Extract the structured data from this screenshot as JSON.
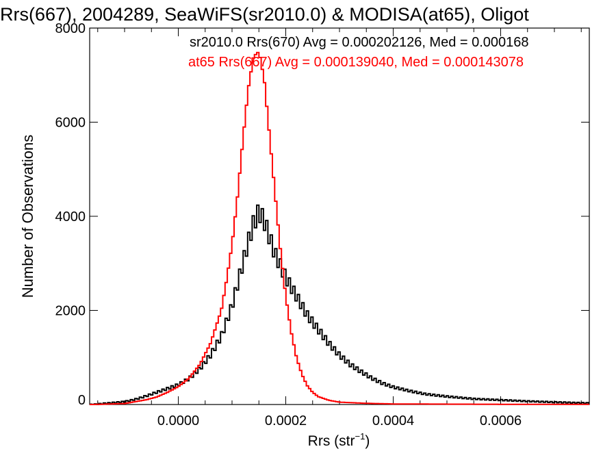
{
  "chart_data": {
    "type": "histogram",
    "title": "Rrs(667), 2004289, SeaWiFS(sr2010.0) & MODISA(at65), Oligot",
    "xlabel": "Rrs (str",
    "xlabel_sup": "−1",
    "xlabel_end": ")",
    "ylabel": "Number of Observations",
    "xlim": [
      -0.000165,
      0.000765
    ],
    "ylim": [
      0,
      8000
    ],
    "x_ticks": [
      0.0,
      0.0002,
      0.0004,
      0.0006
    ],
    "x_tick_labels": [
      "0.0000",
      "0.0002",
      "0.0004",
      "0.0006"
    ],
    "y_ticks": [
      0,
      2000,
      4000,
      6000,
      8000
    ],
    "y_tick_labels": [
      "0",
      "2000",
      "4000",
      "6000",
      "8000"
    ],
    "grid": false,
    "legend": "top",
    "series": [
      {
        "name": "sr2010.0 Rrs(670) Avg = 0.000202126, Med = 0.000168",
        "color": "#000000",
        "style": "noisy-step",
        "points": [
          [
            -0.00016,
            0
          ],
          [
            -0.00014,
            20
          ],
          [
            -0.00012,
            40
          ],
          [
            -0.0001,
            60
          ],
          [
            -8e-05,
            110
          ],
          [
            -6e-05,
            180
          ],
          [
            -4e-05,
            260
          ],
          [
            -2e-05,
            340
          ],
          [
            0.0,
            420
          ],
          [
            2e-05,
            550
          ],
          [
            4e-05,
            760
          ],
          [
            6e-05,
            1050
          ],
          [
            8e-05,
            1450
          ],
          [
            0.0001,
            2100
          ],
          [
            0.00011,
            2550
          ],
          [
            0.00012,
            3000
          ],
          [
            0.00013,
            3450
          ],
          [
            0.00014,
            3850
          ],
          [
            0.00015,
            4100
          ],
          [
            0.00016,
            3900
          ],
          [
            0.00017,
            3550
          ],
          [
            0.00018,
            3200
          ],
          [
            0.00019,
            2950
          ],
          [
            0.0002,
            2700
          ],
          [
            0.00022,
            2300
          ],
          [
            0.00024,
            1900
          ],
          [
            0.00026,
            1600
          ],
          [
            0.00028,
            1300
          ],
          [
            0.0003,
            1050
          ],
          [
            0.00032,
            850
          ],
          [
            0.00034,
            700
          ],
          [
            0.00036,
            560
          ],
          [
            0.00038,
            450
          ],
          [
            0.0004,
            370
          ],
          [
            0.00043,
            290
          ],
          [
            0.00046,
            220
          ],
          [
            0.0005,
            170
          ],
          [
            0.00055,
            120
          ],
          [
            0.0006,
            95
          ],
          [
            0.00065,
            70
          ],
          [
            0.0007,
            50
          ],
          [
            0.00076,
            30
          ]
        ]
      },
      {
        "name": "at65 Rrs(667) Avg = 0.000139040, Med = 0.000143078",
        "color": "#ff0000",
        "style": "step",
        "points": [
          [
            -0.00016,
            0
          ],
          [
            -0.0001,
            20
          ],
          [
            -6e-05,
            100
          ],
          [
            -4e-05,
            160
          ],
          [
            -2e-05,
            260
          ],
          [
            0.0,
            380
          ],
          [
            2e-05,
            560
          ],
          [
            4e-05,
            850
          ],
          [
            6e-05,
            1300
          ],
          [
            8e-05,
            2000
          ],
          [
            9e-05,
            2650
          ],
          [
            0.0001,
            3400
          ],
          [
            0.00011,
            4400
          ],
          [
            0.00012,
            5600
          ],
          [
            0.00013,
            6700
          ],
          [
            0.00014,
            7400
          ],
          [
            0.00015,
            7500
          ],
          [
            0.00016,
            6900
          ],
          [
            0.00017,
            5700
          ],
          [
            0.00018,
            4500
          ],
          [
            0.00019,
            3300
          ],
          [
            0.0002,
            2300
          ],
          [
            0.00021,
            1550
          ],
          [
            0.00022,
            1000
          ],
          [
            0.00023,
            640
          ],
          [
            0.00024,
            400
          ],
          [
            0.00025,
            260
          ],
          [
            0.00026,
            170
          ],
          [
            0.00028,
            90
          ],
          [
            0.0003,
            50
          ],
          [
            0.00035,
            25
          ],
          [
            0.0004,
            12
          ],
          [
            0.0005,
            8
          ],
          [
            0.0006,
            5
          ],
          [
            0.00076,
            3
          ]
        ]
      }
    ]
  }
}
